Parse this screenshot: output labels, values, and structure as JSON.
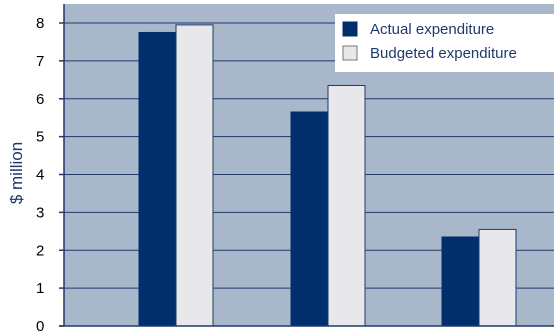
{
  "chart_data": {
    "type": "bar",
    "title": "",
    "xlabel": "",
    "ylabel": "$ million",
    "categories": [
      "",
      "",
      ""
    ],
    "series": [
      {
        "name": "Actual expenditure",
        "values": [
          7.75,
          5.65,
          2.35
        ],
        "color": "#002f6c"
      },
      {
        "name": "Budgeted expenditure",
        "values": [
          7.95,
          6.35,
          2.55
        ],
        "color": "#e8e8ea"
      }
    ],
    "ylim": [
      0,
      8
    ],
    "yticks": [
      0,
      1,
      2,
      3,
      4,
      5,
      6,
      7,
      8
    ],
    "grid": true,
    "legend_position": "top-right",
    "plot_background": "#a9b7cb",
    "grid_color": "#1f3a6b"
  }
}
